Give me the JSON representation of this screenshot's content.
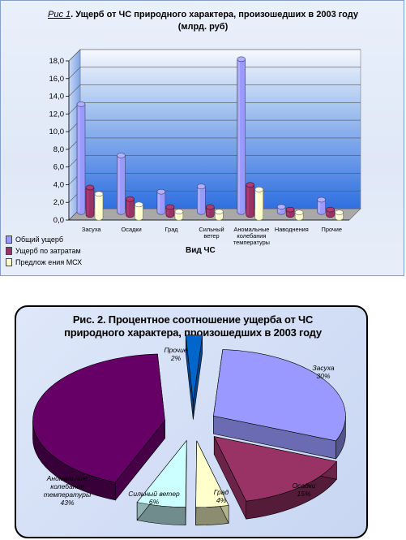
{
  "chart1": {
    "title_prefix": "Рис 1",
    "title_line1": ". Ущерб от ЧС природного характера, произошедших в 2003 году",
    "title_line2": "(млрд. руб)",
    "xlabel": "Вид ЧС",
    "colors": {
      "series1": "#9999ff",
      "series2": "#993366",
      "series3": "#ffffcc",
      "floor": "#a9a9a9"
    }
  },
  "chart2": {
    "title_line1": "Рис. 2. Процентное соотношение ущерба от ЧС",
    "title_line2": "природного характера, произошедших в 2003 году",
    "colors": [
      "#9999ff",
      "#993366",
      "#ffffcc",
      "#ccffff",
      "#660066",
      "#0066cc"
    ]
  },
  "chart_data": [
    {
      "type": "bar",
      "title": "Рис 1. Ущерб от ЧС природного характера, произошедших в 2003 году (млрд. руб)",
      "xlabel": "Вид ЧС",
      "ylabel": "",
      "ylim": [
        0,
        18
      ],
      "yticks": [
        "0,0",
        "2,0",
        "4,0",
        "6,0",
        "8,0",
        "10,0",
        "12,0",
        "14,0",
        "16,0",
        "18,0"
      ],
      "categories": [
        [
          "Засуха"
        ],
        [
          "Осадки"
        ],
        [
          "Град"
        ],
        [
          "Сильный",
          "ветер"
        ],
        [
          "Аномальные",
          "колебания",
          "температуры"
        ],
        [
          "Наводнения"
        ],
        [
          "Прочие"
        ]
      ],
      "series": [
        {
          "name": "Общий ущерб",
          "values": [
            12.2,
            6.4,
            2.3,
            2.9,
            17.3,
            0.6,
            1.4
          ]
        },
        {
          "name": "Ущерб по затратам",
          "values": [
            3.1,
            1.8,
            0.9,
            0.9,
            3.4,
            0.6,
            0.6
          ]
        },
        {
          "name": "Предлож ения МСХ",
          "values": [
            2.7,
            1.5,
            0.7,
            0.7,
            3.2,
            0.6,
            0.6
          ]
        }
      ],
      "legend": "bottom-left",
      "grid": true
    },
    {
      "type": "pie",
      "title": "Рис. 2. Процентное соотношение ущерба от ЧС природного характера, произошедших в 2003 году",
      "slices": [
        {
          "label": "Засуха",
          "pct": "30%",
          "value": 30
        },
        {
          "label": "Осадки",
          "pct": "15%",
          "value": 15
        },
        {
          "label": "Град",
          "pct": "4%",
          "value": 4
        },
        {
          "label": "Сильный ветер",
          "pct": "6%",
          "value": 6
        },
        {
          "label": [
            "Аномальные",
            "колебания",
            "температуры"
          ],
          "pct": "43%",
          "value": 43
        },
        {
          "label": "Прочие",
          "pct": "2%",
          "value": 2
        }
      ]
    }
  ]
}
